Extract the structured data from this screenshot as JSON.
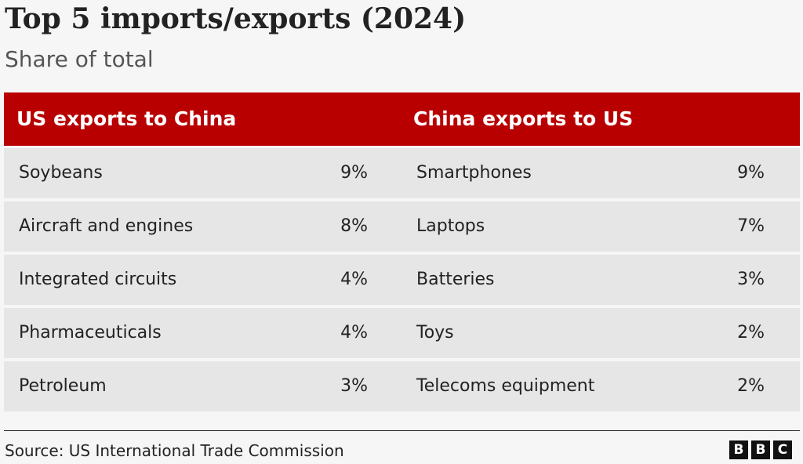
{
  "title": "Top 5 imports/exports (2024)",
  "subtitle": "Share of total",
  "source": "Source: US International Trade Commission",
  "logo": "BBC",
  "colors": {
    "header_background": "#b80000",
    "header_text": "#ffffff",
    "row_background": "#e6e6e6",
    "page_background": "#f6f6f6"
  },
  "chart_data": {
    "type": "table",
    "title": "Top 5 imports/exports (2024)",
    "subtitle": "Share of total",
    "columns": [
      "US exports to China",
      "China exports to US"
    ],
    "rows": [
      {
        "us_product": "Soybeans",
        "us_share": "9%",
        "china_product": "Smartphones",
        "china_share": "9%"
      },
      {
        "us_product": "Aircraft and engines",
        "us_share": "8%",
        "china_product": "Laptops",
        "china_share": "7%"
      },
      {
        "us_product": "Integrated circuits",
        "us_share": "4%",
        "china_product": "Batteries",
        "china_share": "3%"
      },
      {
        "us_product": "Pharmaceuticals",
        "us_share": "4%",
        "china_product": "Toys",
        "china_share": "2%"
      },
      {
        "us_product": "Petroleum",
        "us_share": "3%",
        "china_product": "Telecoms equipment",
        "china_share": "2%"
      }
    ]
  }
}
